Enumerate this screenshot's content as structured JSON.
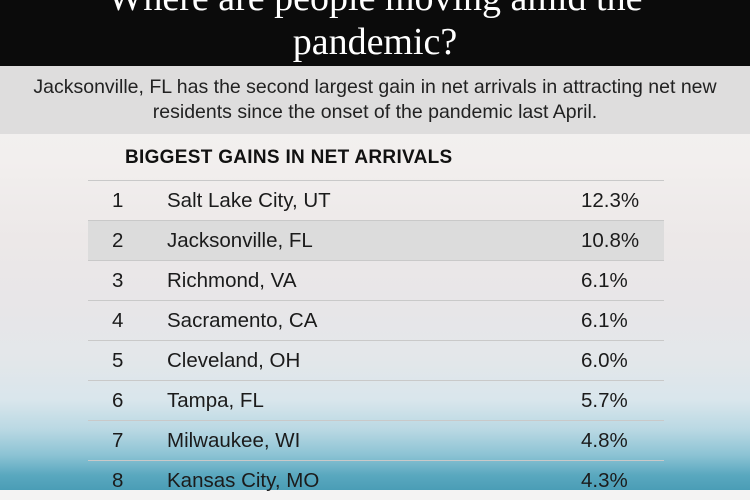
{
  "header": {
    "title": "Where are people moving amid the\npandemic?"
  },
  "subtitle": "Jacksonville, FL has the second largest gain in net arrivals in attracting net new residents since the onset of the pandemic last April.",
  "colors": {
    "header_bg": "#0b0b0b",
    "subtitle_band": "#dedddd",
    "highlight_row": "#dcdcdc"
  },
  "chart_data": {
    "type": "table",
    "title": "BIGGEST GAINS IN NET ARRIVALS",
    "highlighted_rank": "2",
    "rows": [
      {
        "rank": "1",
        "city": "Salt Lake City, UT",
        "value": "12.3%"
      },
      {
        "rank": "2",
        "city": "Jacksonville, FL",
        "value": "10.8%"
      },
      {
        "rank": "3",
        "city": "Richmond, VA",
        "value": "6.1%"
      },
      {
        "rank": "4",
        "city": "Sacramento, CA",
        "value": "6.1%"
      },
      {
        "rank": "5",
        "city": "Cleveland, OH",
        "value": "6.0%"
      },
      {
        "rank": "6",
        "city": "Tampa, FL",
        "value": "5.7%"
      },
      {
        "rank": "7",
        "city": "Milwaukee, WI",
        "value": "4.8%"
      },
      {
        "rank": "8",
        "city": "Kansas City, MO",
        "value": "4.3%"
      }
    ]
  }
}
